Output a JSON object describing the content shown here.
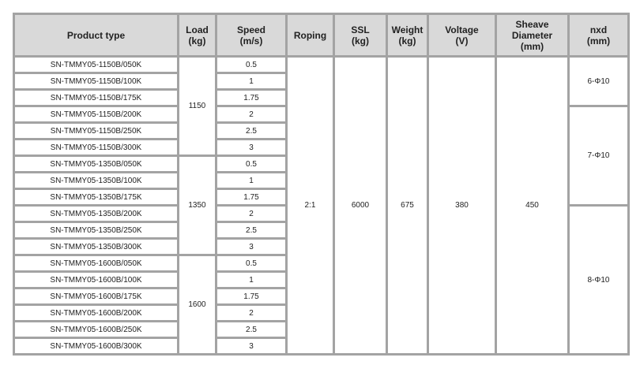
{
  "headers": {
    "product": "Product type",
    "load": [
      "Load",
      "(kg)"
    ],
    "speed": [
      "Speed",
      "(m/s)"
    ],
    "roping": "Roping",
    "ssl": [
      "SSL",
      "(kg)"
    ],
    "weight": [
      "Weight",
      "(kg)"
    ],
    "voltage": [
      "Voltage",
      "(V)"
    ],
    "sheave": [
      "Sheave",
      "Diameter",
      "(mm)"
    ],
    "nxd": [
      "nxd",
      "(mm)"
    ]
  },
  "rows": [
    {
      "product": "SN-TMMY05-1150B/050K",
      "speed": "0.5"
    },
    {
      "product": "SN-TMMY05-1150B/100K",
      "speed": "1"
    },
    {
      "product": "SN-TMMY05-1150B/175K",
      "speed": "1.75"
    },
    {
      "product": "SN-TMMY05-1150B/200K",
      "speed": "2"
    },
    {
      "product": "SN-TMMY05-1150B/250K",
      "speed": "2.5"
    },
    {
      "product": "SN-TMMY05-1150B/300K",
      "speed": "3"
    },
    {
      "product": "SN-TMMY05-1350B/050K",
      "speed": "0.5"
    },
    {
      "product": "SN-TMMY05-1350B/100K",
      "speed": "1"
    },
    {
      "product": "SN-TMMY05-1350B/175K",
      "speed": "1.75"
    },
    {
      "product": "SN-TMMY05-1350B/200K",
      "speed": "2"
    },
    {
      "product": "SN-TMMY05-1350B/250K",
      "speed": "2.5"
    },
    {
      "product": "SN-TMMY05-1350B/300K",
      "speed": "3"
    },
    {
      "product": "SN-TMMY05-1600B/050K",
      "speed": "0.5"
    },
    {
      "product": "SN-TMMY05-1600B/100K",
      "speed": "1"
    },
    {
      "product": "SN-TMMY05-1600B/175K",
      "speed": "1.75"
    },
    {
      "product": "SN-TMMY05-1600B/200K",
      "speed": "2"
    },
    {
      "product": "SN-TMMY05-1600B/250K",
      "speed": "2.5"
    },
    {
      "product": "SN-TMMY05-1600B/300K",
      "speed": "3"
    }
  ],
  "loads": [
    "1150",
    "1350",
    "1600"
  ],
  "roping": "2:1",
  "ssl": "6000",
  "weight": "675",
  "voltage": "380",
  "sheave": "450",
  "nxd": [
    "6-Φ10",
    "7-Φ10",
    "8-Φ10"
  ]
}
